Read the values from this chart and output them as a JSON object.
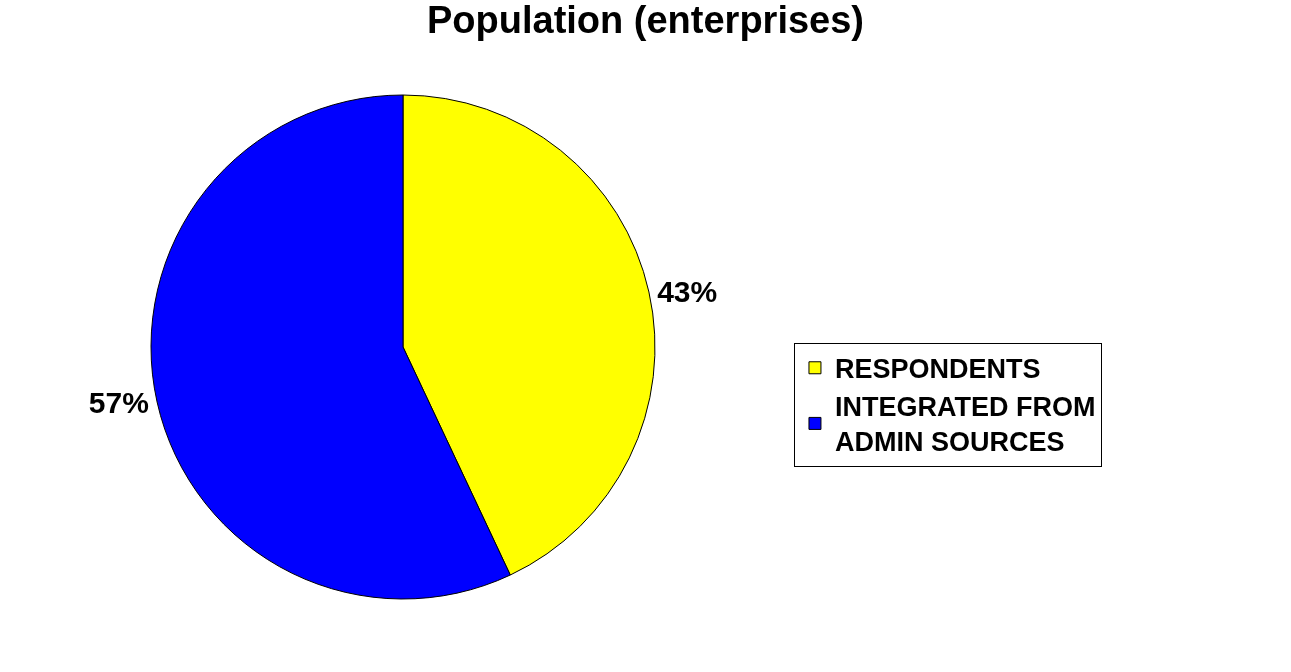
{
  "chart_data": {
    "type": "pie",
    "title": "Population (enterprises)",
    "categories": [
      "RESPONDENTS",
      "INTEGRATED FROM ADMIN SOURCES"
    ],
    "values": [
      43,
      57
    ],
    "colors": [
      "#ffff00",
      "#0000ff"
    ],
    "value_labels": [
      "43%",
      "57%"
    ],
    "legend": "right"
  }
}
